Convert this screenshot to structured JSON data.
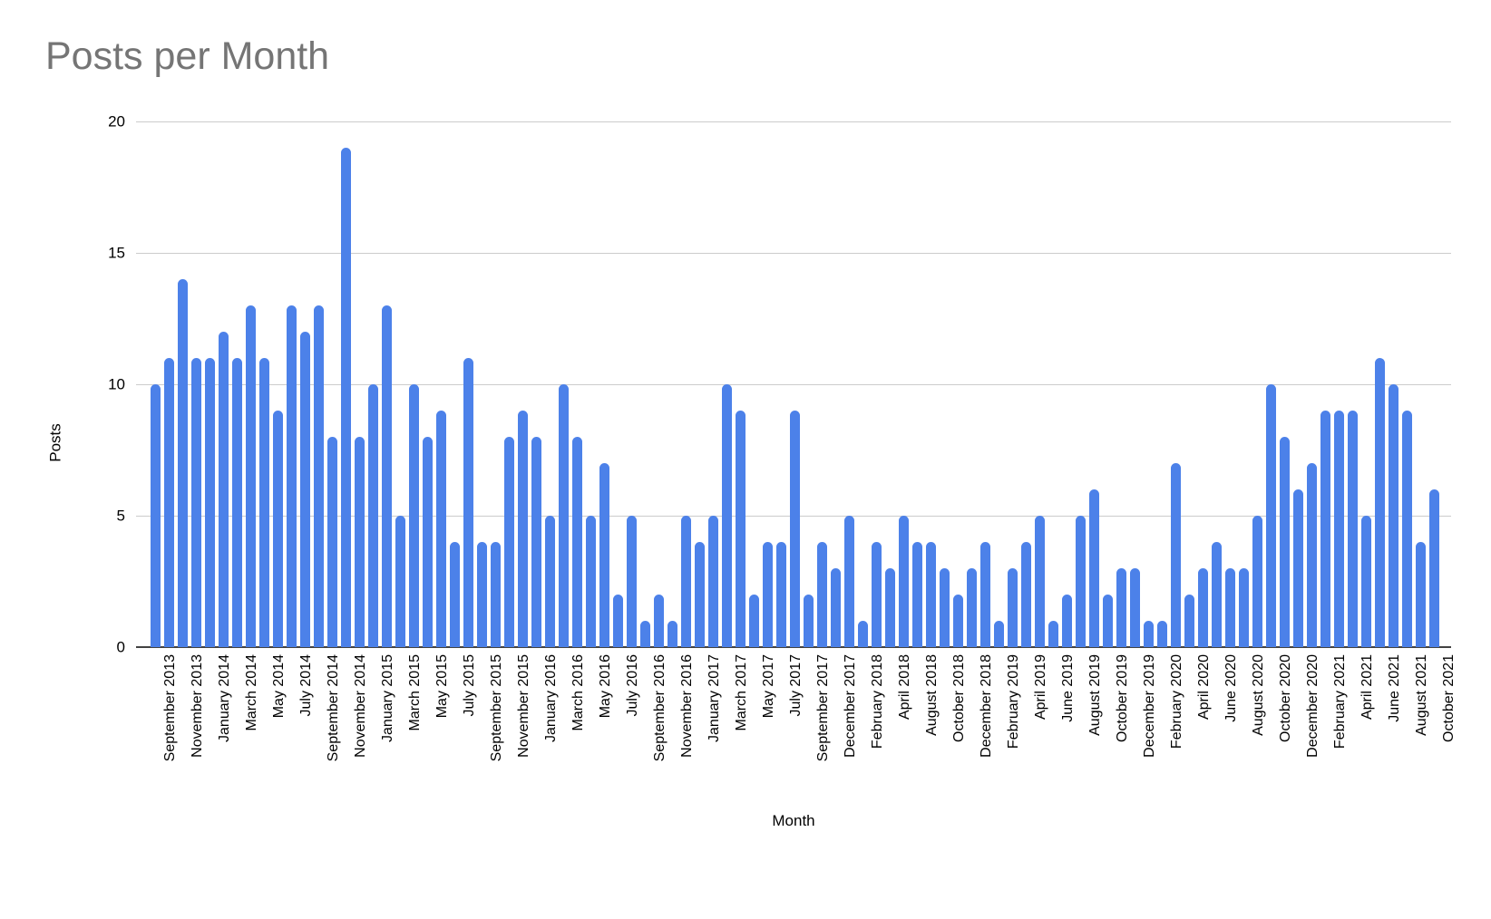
{
  "page": {
    "background": "#ffffff"
  },
  "chart_data": {
    "type": "bar",
    "title": "Posts per Month",
    "title_color": "#757575",
    "xlabel": "Month",
    "ylabel": "Posts",
    "ylim": [
      0,
      20
    ],
    "y_ticks": [
      0,
      5,
      10,
      15,
      20
    ],
    "grid": true,
    "legend": "none",
    "bar_color": "#4c81e9",
    "gridline_color": "#cccccc",
    "axis_line_color": "#424242",
    "label_every_n_bars": 2,
    "x_tick_labels": [
      "September 2013",
      "November 2013",
      "January 2014",
      "March 2014",
      "May 2014",
      "July 2014",
      "September 2014",
      "November 2014",
      "January 2015",
      "March 2015",
      "May 2015",
      "July 2015",
      "September 2015",
      "November 2015",
      "January 2016",
      "March 2016",
      "May 2016",
      "July 2016",
      "September 2016",
      "November 2016",
      "January 2017",
      "March 2017",
      "May 2017",
      "July 2017",
      "September 2017",
      "December 2017",
      "February 2018",
      "April 2018",
      "August 2018",
      "October 2018",
      "December 2018",
      "February 2019",
      "April 2019",
      "June 2019",
      "August 2019",
      "October 2019",
      "December 2019",
      "February 2020",
      "April 2020",
      "June 2020",
      "August 2020",
      "October 2020",
      "December 2020",
      "February 2021",
      "April 2021",
      "June 2021",
      "August 2021",
      "October 2021"
    ],
    "values": [
      10,
      11,
      14,
      11,
      11,
      12,
      11,
      13,
      11,
      9,
      13,
      12,
      13,
      8,
      19,
      8,
      10,
      13,
      5,
      10,
      8,
      9,
      4,
      11,
      4,
      4,
      8,
      9,
      8,
      5,
      10,
      8,
      5,
      7,
      2,
      5,
      1,
      2,
      1,
      5,
      4,
      5,
      10,
      9,
      2,
      4,
      4,
      9,
      2,
      4,
      3,
      5,
      1,
      4,
      3,
      5,
      4,
      4,
      3,
      2,
      3,
      4,
      1,
      3,
      4,
      5,
      1,
      2,
      5,
      6,
      2,
      3,
      3,
      1,
      1,
      7,
      2,
      3,
      4,
      3,
      3,
      5,
      10,
      8,
      6,
      7,
      9,
      9,
      9,
      5,
      11,
      10,
      9,
      4,
      6
    ]
  }
}
